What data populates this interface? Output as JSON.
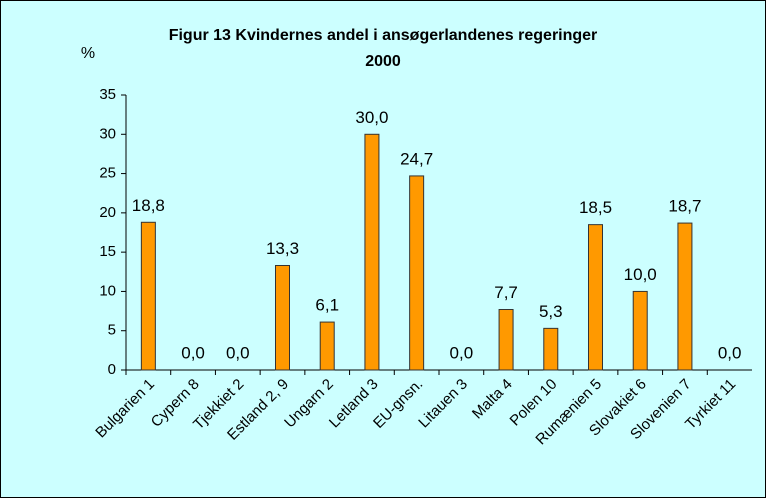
{
  "chart_data": {
    "type": "bar",
    "title": [
      "Figur 13 Kvindernes andel i ansøgerlandenes regeringer",
      "2000"
    ],
    "y_label": "%",
    "categories": [
      "Bulgarien 1",
      "Cypern 8",
      "Tjekkiet 2",
      "Estland 2, 9",
      "Ungarn 2",
      "Letland 3",
      "EU-gnsn.",
      "Litauen 3",
      "Malta 4",
      "Polen 10",
      "Rumænien 5",
      "Slovakiet 6",
      "Slovenien 7",
      "Tyrkiet 11"
    ],
    "values": [
      18.8,
      0,
      0,
      13.3,
      6.1,
      30,
      24.7,
      0,
      7.7,
      5.3,
      18.5,
      10,
      18.7,
      0
    ],
    "value_labels": [
      "18,8",
      "0,0",
      "0,0",
      "13,3",
      "6,1",
      "30,0",
      "24,7",
      "0,0",
      "7,7",
      "5,3",
      "18,5",
      "10,0",
      "18,7",
      "0,0"
    ],
    "color": "#ff9900",
    "ylim": [
      0,
      35
    ],
    "yticks": [
      0,
      5,
      10,
      15,
      20,
      25,
      30,
      35
    ],
    "grid": false
  }
}
